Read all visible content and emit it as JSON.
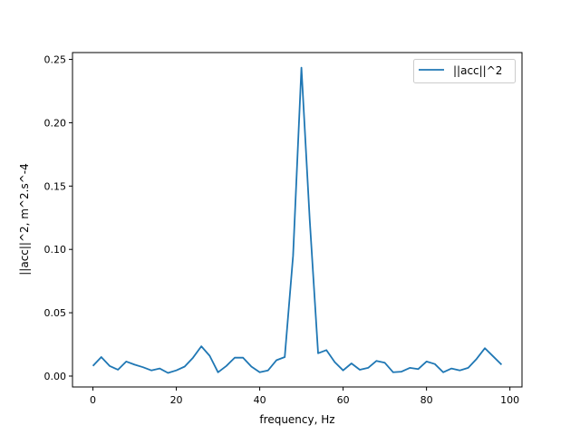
{
  "chart_data": {
    "type": "line",
    "title": "",
    "xlabel": "frequency, Hz",
    "ylabel": "||acc||^2, m^2.s^-4",
    "xlim": [
      -4.9,
      102.9
    ],
    "ylim": [
      -0.0086,
      0.2554
    ],
    "xticks": [
      0,
      20,
      40,
      60,
      80,
      100
    ],
    "xtick_labels": [
      "0",
      "20",
      "40",
      "60",
      "80",
      "100"
    ],
    "yticks": [
      0.0,
      0.05,
      0.1,
      0.15,
      0.2,
      0.25
    ],
    "ytick_labels": [
      "0.00",
      "0.05",
      "0.10",
      "0.15",
      "0.20",
      "0.25"
    ],
    "grid": false,
    "legend": "top-right",
    "series": [
      {
        "name": "||acc||^2",
        "color": "#1f77b4",
        "x": [
          0,
          2,
          4,
          6,
          8,
          10,
          12,
          14,
          16,
          18,
          20,
          22,
          24,
          26,
          28,
          30,
          32,
          34,
          36,
          38,
          40,
          42,
          44,
          46,
          48,
          50,
          52,
          54,
          56,
          58,
          60,
          62,
          64,
          66,
          68,
          70,
          72,
          74,
          76,
          78,
          80,
          82,
          84,
          86,
          88,
          90,
          92,
          94,
          96,
          98
        ],
        "y": [
          0.008,
          0.015,
          0.008,
          0.005,
          0.0115,
          0.009,
          0.007,
          0.0045,
          0.006,
          0.0025,
          0.0045,
          0.0075,
          0.0145,
          0.0235,
          0.016,
          0.003,
          0.008,
          0.0145,
          0.0145,
          0.0075,
          0.003,
          0.0045,
          0.0125,
          0.015,
          0.095,
          0.2435,
          0.123,
          0.018,
          0.0205,
          0.011,
          0.0045,
          0.01,
          0.005,
          0.0065,
          0.012,
          0.0105,
          0.003,
          0.0035,
          0.0065,
          0.0055,
          0.0115,
          0.0095,
          0.003,
          0.006,
          0.0045,
          0.0065,
          0.0135,
          0.022,
          0.0155,
          0.009
        ]
      }
    ]
  }
}
